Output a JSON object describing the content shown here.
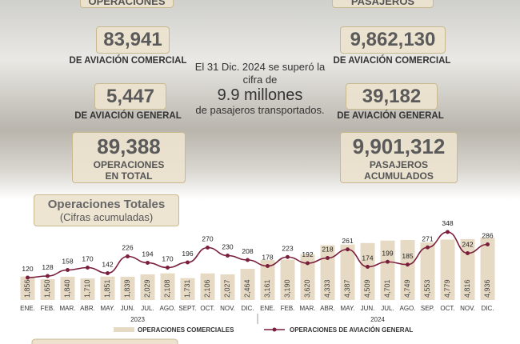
{
  "header": {
    "left": {
      "title": "OPERACIONES",
      "commercial_value": "83,941",
      "commercial_label": "DE AVIACIÓN COMERCIAL",
      "general_value": "5,447",
      "general_label": "DE AVIACIÓN GENERAL",
      "total_value": "89,388",
      "total_label": "OPERACIONES EN TOTAL"
    },
    "right": {
      "title": "PASAJEROS",
      "commercial_value": "9,862,130",
      "commercial_label": "DE AVIACIÓN COMERCIAL",
      "general_value": "39,182",
      "general_label": "DE AVIACIÓN GENERAL",
      "total_value": "9,901,312",
      "total_label": "PASAJEROS ACUMULADOS"
    },
    "note": {
      "line1": "El 31 Dic. 2024 se superó la cifra de",
      "highlight": "9.9 millones",
      "line2": "de pasajeros transportados."
    }
  },
  "chart_data": {
    "type": "bar",
    "title": "Operaciones Totales",
    "subtitle": "(Cifras acumuladas)",
    "categories": [
      "ENE.",
      "FEB.",
      "MAR.",
      "ABR.",
      "MAY.",
      "JUN.",
      "JUL.",
      "AGO.",
      "SEPT.",
      "OCT.",
      "NOV.",
      "DIC.",
      "ENE.",
      "FEB.",
      "MAR.",
      "ABR.",
      "MAY.",
      "JUN.",
      "JUL.",
      "AGO.",
      "SEP.",
      "OCT.",
      "NOV.",
      "DIC."
    ],
    "groups": [
      "2023",
      "2024"
    ],
    "series": [
      {
        "name": "OPERACIONES COMERCIALES",
        "color": "#e6dac4",
        "values": [
          1856,
          1650,
          1840,
          1710,
          1851,
          1839,
          2029,
          2108,
          1731,
          2106,
          2027,
          2464,
          3161,
          3190,
          3620,
          4333,
          4387,
          4509,
          4701,
          4749,
          4553,
          4779,
          4816,
          4936
        ],
        "value_labels": [
          "1,856",
          "1,650",
          "1,840",
          "1,710",
          "1,851",
          "1,839",
          "2,029",
          "2,108",
          "1,731",
          "2,106",
          "2,027",
          "2,464",
          "3,161",
          "3,190",
          "3,620",
          "4,333",
          "4,387",
          "4,509",
          "4,701",
          "4,749",
          "4,553",
          "4,779",
          "4,816",
          "4,936"
        ]
      },
      {
        "name": "OPERACIONES DE AVIACIÓN GENERAL",
        "color": "#7a1e3c",
        "type": "line",
        "axis": "y2",
        "values": [
          120,
          128,
          158,
          170,
          142,
          226,
          194,
          170,
          196,
          270,
          230,
          208,
          178,
          223,
          192,
          218,
          261,
          174,
          199,
          185,
          271,
          348,
          242,
          286
        ]
      }
    ]
  }
}
